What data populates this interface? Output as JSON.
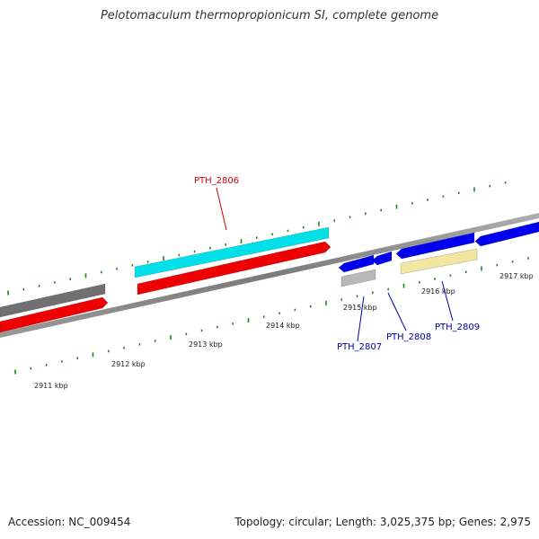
{
  "title": "Pelotomaculum thermopropionicum SI, complete genome",
  "footer": {
    "accession": "Accession: NC_009454",
    "summary": "Topology: circular; Length: 3,025,375 bp; Genes: 2,975"
  },
  "colors": {
    "backbone": "#8c8c8c",
    "tick": "#1a8a1a",
    "label_red": "#cc0000",
    "label_blue": "#0000aa"
  },
  "ticks": [
    {
      "label": "2911 kbp"
    },
    {
      "label": "2912 kbp"
    },
    {
      "label": "2913 kbp"
    },
    {
      "label": "2914 kbp"
    },
    {
      "label": "2915 kbp"
    },
    {
      "label": "2916 kbp"
    },
    {
      "label": "2917 kbp"
    }
  ],
  "features": [
    {
      "color": "#707070"
    },
    {
      "color": "#ee0000"
    },
    {
      "color": "#00e0e8"
    },
    {
      "color": "#ee0000"
    },
    {
      "color": "#0000ee"
    },
    {
      "color": "#0000ee"
    },
    {
      "color": "#b8b8b8"
    },
    {
      "color": "#0000ee"
    },
    {
      "color": "#0000ee"
    },
    {
      "color": "#f2e6a0"
    }
  ],
  "labels": {
    "pth_2806": "PTH_2806",
    "pth_2807": "PTH_2807",
    "pth_2808": "PTH_2808",
    "pth_2809": "PTH_2809"
  }
}
